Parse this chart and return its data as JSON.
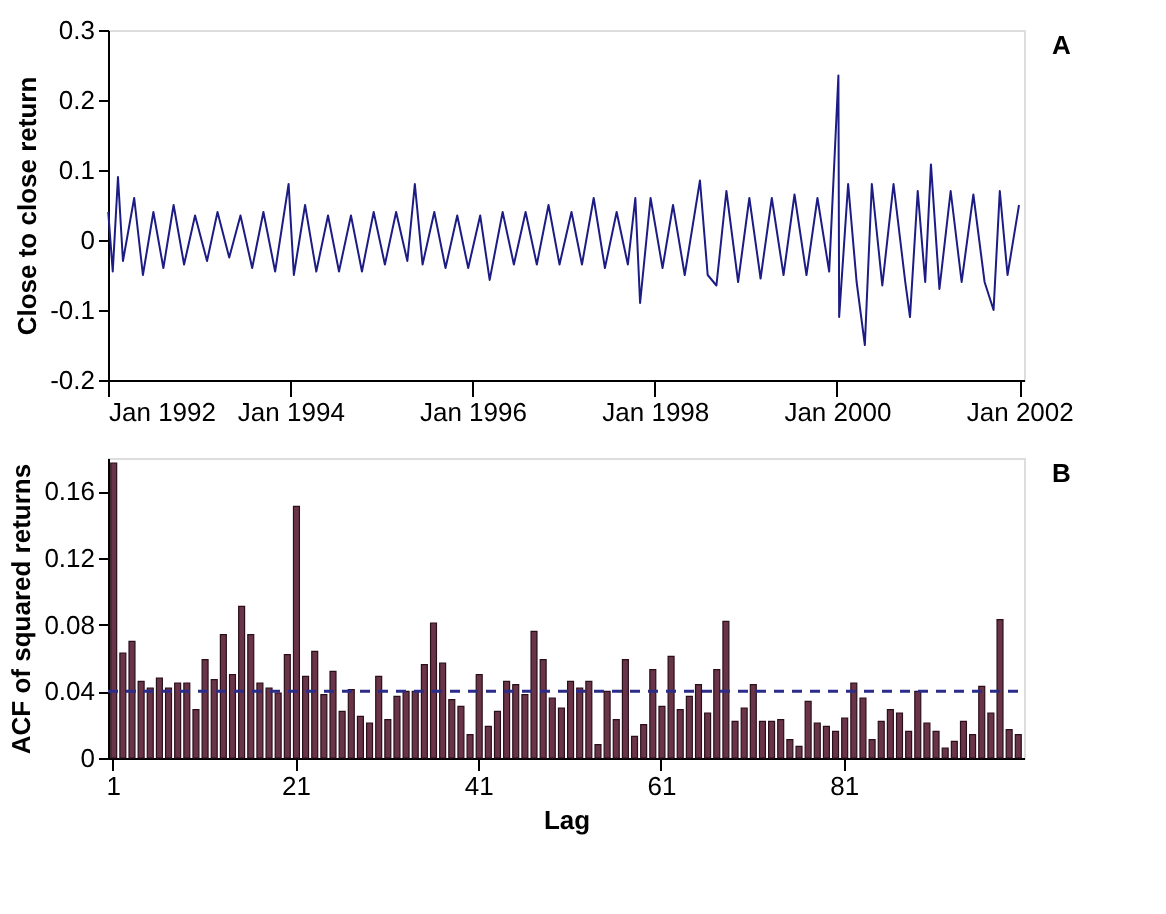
{
  "chart_data": [
    {
      "type": "line",
      "ylabel": "Close to close return",
      "annotations": [
        "A"
      ],
      "grid": false,
      "marker": "none",
      "line_style": "solid",
      "xlim": [
        "1992-01-01",
        "2002-01-20"
      ],
      "ylim": [
        -0.2,
        0.3
      ],
      "yticks": [
        -0.2,
        -0.1,
        0,
        0.1,
        0.2,
        0.3
      ],
      "xticks": [
        {
          "value": "1992-01-01",
          "label": "Jan 1992"
        },
        {
          "value": "1994-01-01",
          "label": "Jan 1994"
        },
        {
          "value": "1996-01-01",
          "label": "Jan 1996"
        },
        {
          "value": "1998-01-01",
          "label": "Jan 1998"
        },
        {
          "value": "2000-01-01",
          "label": "Jan 2000"
        },
        {
          "value": "2002-01-01",
          "label": "Jan 2002"
        }
      ],
      "x": [
        "1992-01-02",
        "1992-01-20",
        "1992-02-10",
        "1992-03-01",
        "1992-04-15",
        "1992-05-20",
        "1992-07-01",
        "1992-08-10",
        "1992-09-20",
        "1992-11-01",
        "1992-12-15",
        "1993-02-01",
        "1993-03-15",
        "1993-05-01",
        "1993-06-15",
        "1993-08-01",
        "1993-09-15",
        "1993-11-01",
        "1993-12-25",
        "1994-01-15",
        "1994-03-01",
        "1994-04-15",
        "1994-06-01",
        "1994-07-15",
        "1994-09-01",
        "1994-10-15",
        "1994-12-01",
        "1995-01-15",
        "1995-03-01",
        "1995-04-15",
        "1995-05-15",
        "1995-06-15",
        "1995-08-01",
        "1995-09-15",
        "1995-11-01",
        "1995-12-15",
        "1996-02-01",
        "1996-03-10",
        "1996-05-01",
        "1996-06-15",
        "1996-08-01",
        "1996-09-15",
        "1996-11-01",
        "1996-12-15",
        "1997-02-01",
        "1997-03-15",
        "1997-05-01",
        "1997-06-15",
        "1997-08-01",
        "1997-09-15",
        "1997-10-15",
        "1997-11-03",
        "1997-12-15",
        "1998-02-01",
        "1998-03-15",
        "1998-05-01",
        "1998-07-01",
        "1998-08-01",
        "1998-09-05",
        "1998-10-15",
        "1998-12-01",
        "1999-01-15",
        "1999-03-01",
        "1999-04-15",
        "1999-06-01",
        "1999-07-15",
        "1999-09-01",
        "1999-10-15",
        "1999-12-01",
        "2000-01-07",
        "2000-01-10",
        "2000-02-15",
        "2000-03-20",
        "2000-04-22",
        "2000-05-20",
        "2000-07-01",
        "2000-08-15",
        "2000-10-01",
        "2000-10-20",
        "2000-11-20",
        "2000-12-20",
        "2001-01-12",
        "2001-02-15",
        "2001-04-01",
        "2001-05-15",
        "2001-07-01",
        "2001-08-15",
        "2001-09-20",
        "2001-10-15",
        "2001-11-15",
        "2001-12-31"
      ],
      "series": [
        {
          "color": "#1c1c84",
          "values": [
            0.04,
            -0.045,
            0.09,
            -0.03,
            0.06,
            -0.05,
            0.04,
            -0.04,
            0.05,
            -0.035,
            0.035,
            -0.03,
            0.04,
            -0.025,
            0.035,
            -0.04,
            0.04,
            -0.045,
            0.08,
            -0.05,
            0.05,
            -0.045,
            0.035,
            -0.045,
            0.035,
            -0.045,
            0.04,
            -0.035,
            0.04,
            -0.03,
            0.08,
            -0.035,
            0.04,
            -0.04,
            0.035,
            -0.04,
            0.035,
            -0.057,
            0.04,
            -0.035,
            0.04,
            -0.035,
            0.05,
            -0.035,
            0.04,
            -0.035,
            0.06,
            -0.04,
            0.04,
            -0.035,
            0.06,
            -0.09,
            0.06,
            -0.04,
            0.05,
            -0.05,
            0.085,
            -0.05,
            -0.065,
            0.07,
            -0.06,
            0.06,
            -0.055,
            0.06,
            -0.05,
            0.065,
            -0.05,
            0.06,
            -0.045,
            0.235,
            -0.11,
            0.08,
            -0.06,
            -0.15,
            0.08,
            -0.065,
            0.08,
            -0.06,
            -0.11,
            0.07,
            -0.06,
            0.108,
            -0.07,
            0.07,
            -0.06,
            0.065,
            -0.06,
            -0.1,
            0.07,
            -0.05,
            0.05
          ]
        }
      ]
    },
    {
      "type": "bar",
      "xlabel": "Lag",
      "ylabel": "ACF of squared returns",
      "annotations": [
        "B"
      ],
      "grid": false,
      "ylim": [
        0,
        0.18
      ],
      "yticks": [
        0,
        0.04,
        0.08,
        0.12,
        0.16
      ],
      "categories": [
        "1",
        null,
        null,
        null,
        null,
        null,
        null,
        null,
        null,
        null,
        null,
        null,
        null,
        null,
        null,
        null,
        null,
        null,
        null,
        null,
        "21",
        null,
        null,
        null,
        null,
        null,
        null,
        null,
        null,
        null,
        null,
        null,
        null,
        null,
        null,
        null,
        null,
        null,
        null,
        null,
        "41",
        null,
        null,
        null,
        null,
        null,
        null,
        null,
        null,
        null,
        null,
        null,
        null,
        null,
        null,
        null,
        null,
        null,
        null,
        null,
        "61",
        null,
        null,
        null,
        null,
        null,
        null,
        null,
        null,
        null,
        null,
        null,
        null,
        null,
        null,
        null,
        null,
        null,
        null,
        null,
        "81",
        null,
        null,
        null,
        null,
        null,
        null,
        null,
        null,
        null,
        null,
        null,
        null,
        null,
        null,
        null,
        null,
        null,
        null,
        null
      ],
      "ref_lines": [
        {
          "axis": "y",
          "value": 0.04,
          "color": "#2b2b8a",
          "line_style": "dashed"
        }
      ],
      "series": [
        {
          "color": "#6a3448",
          "values": [
            0.177,
            0.063,
            0.07,
            0.046,
            0.042,
            0.048,
            0.042,
            0.045,
            0.045,
            0.029,
            0.059,
            0.047,
            0.074,
            0.05,
            0.091,
            0.074,
            0.045,
            0.042,
            0.039,
            0.062,
            0.151,
            0.049,
            0.064,
            0.038,
            0.052,
            0.028,
            0.041,
            0.025,
            0.021,
            0.049,
            0.023,
            0.037,
            0.04,
            0.04,
            0.056,
            0.081,
            0.057,
            0.035,
            0.031,
            0.014,
            0.05,
            0.019,
            0.028,
            0.046,
            0.044,
            0.038,
            0.076,
            0.059,
            0.036,
            0.03,
            0.046,
            0.042,
            0.046,
            0.008,
            0.04,
            0.023,
            0.059,
            0.013,
            0.02,
            0.053,
            0.031,
            0.061,
            0.029,
            0.037,
            0.044,
            0.027,
            0.053,
            0.082,
            0.022,
            0.03,
            0.044,
            0.022,
            0.022,
            0.023,
            0.011,
            0.007,
            0.034,
            0.021,
            0.019,
            0.016,
            0.024,
            0.045,
            0.036,
            0.011,
            0.022,
            0.029,
            0.027,
            0.016,
            0.04,
            0.021,
            0.016,
            0.006,
            0.01,
            0.022,
            0.014,
            0.043,
            0.027,
            0.083,
            0.017,
            0.014
          ]
        }
      ]
    }
  ]
}
